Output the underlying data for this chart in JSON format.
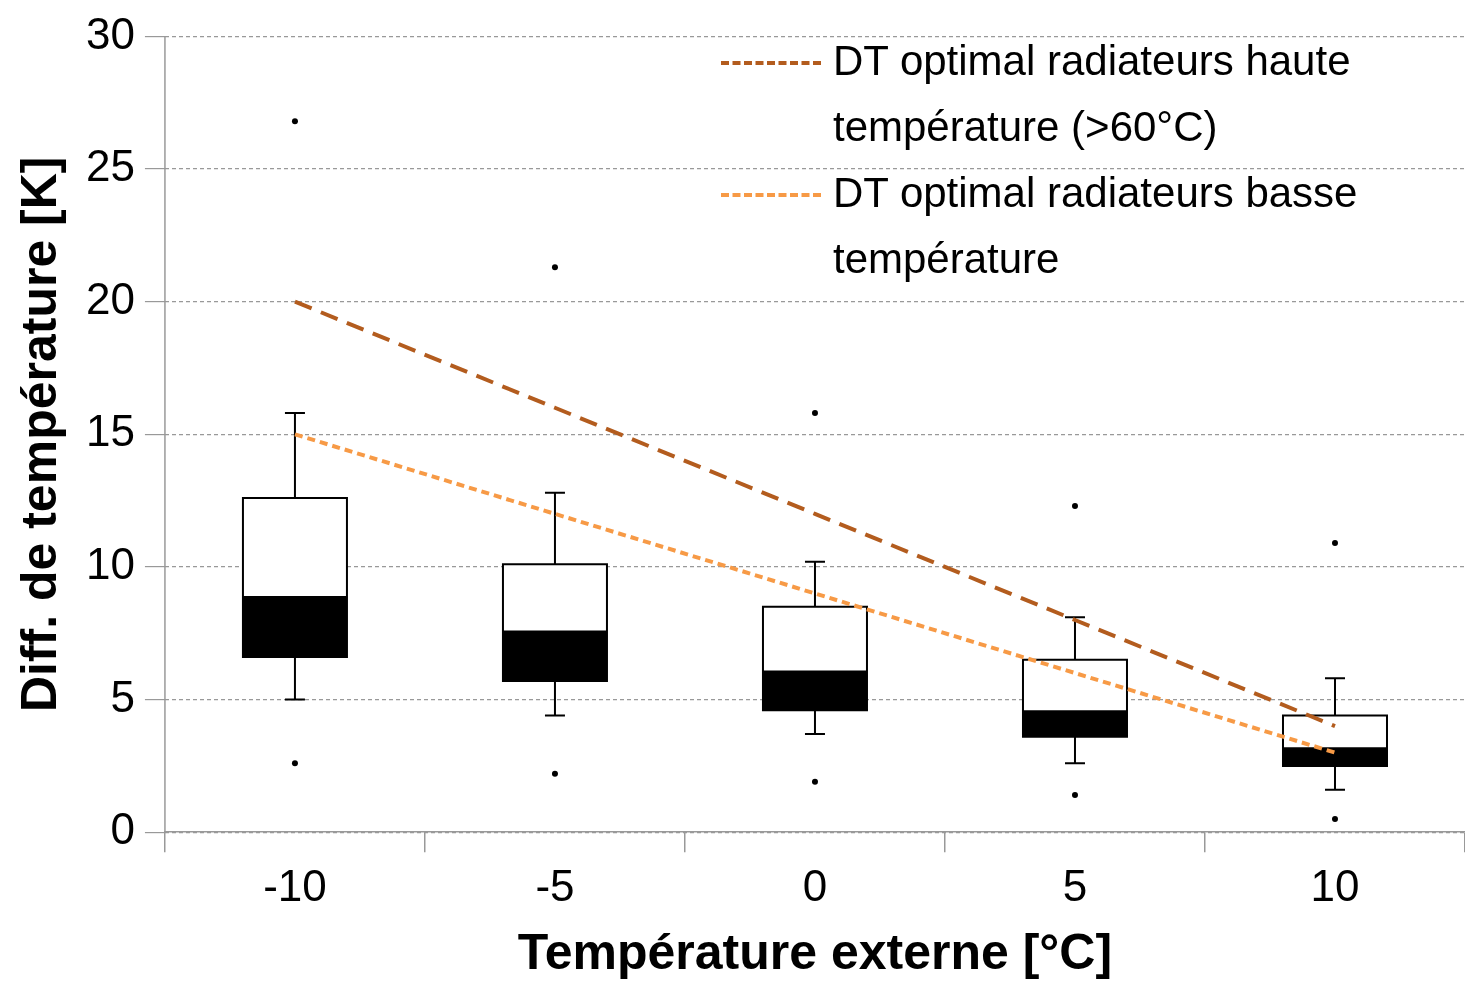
{
  "chart_data": {
    "type": "box",
    "xlabel": "Température externe [°C]",
    "ylabel": "Diff. de température [K]",
    "categories": [
      "-10",
      "-5",
      "0",
      "5",
      "10"
    ],
    "ylim": [
      0,
      30
    ],
    "yticks": [
      0,
      5,
      10,
      15,
      20,
      25,
      30
    ],
    "grid": "y",
    "legend": "top right",
    "marker": "none",
    "series": [
      {
        "color": "#000000",
        "boxes": [
          {
            "low": 5.0,
            "q1": 6.6,
            "median": 8.9,
            "q3": 12.6,
            "high": 15.8,
            "outliers": [
              26.8,
              2.6
            ]
          },
          {
            "low": 4.4,
            "q1": 5.7,
            "median": 7.6,
            "q3": 10.1,
            "high": 12.8,
            "outliers": [
              21.3,
              2.2
            ]
          },
          {
            "low": 3.7,
            "q1": 4.6,
            "median": 6.1,
            "q3": 8.5,
            "high": 10.2,
            "outliers": [
              15.8,
              1.9
            ]
          },
          {
            "low": 2.6,
            "q1": 3.6,
            "median": 4.6,
            "q3": 6.5,
            "high": 8.1,
            "outliers": [
              12.3,
              1.4
            ]
          },
          {
            "low": 1.6,
            "q1": 2.5,
            "median": 3.2,
            "q3": 4.4,
            "high": 5.8,
            "outliers": [
              10.9,
              0.5
            ]
          }
        ]
      },
      {
        "type": "line",
        "name": "DT optimal radiateurs haute température (>60°C)",
        "color": "#b35c1e",
        "line_style": "dashed",
        "values": [
          20,
          16,
          12,
          8,
          4
        ]
      },
      {
        "type": "line",
        "name": "DT optimal radiateurs basse température",
        "color": "#f79a46",
        "line_style": "dotted",
        "values": [
          15,
          12,
          9,
          6,
          3
        ]
      }
    ]
  }
}
